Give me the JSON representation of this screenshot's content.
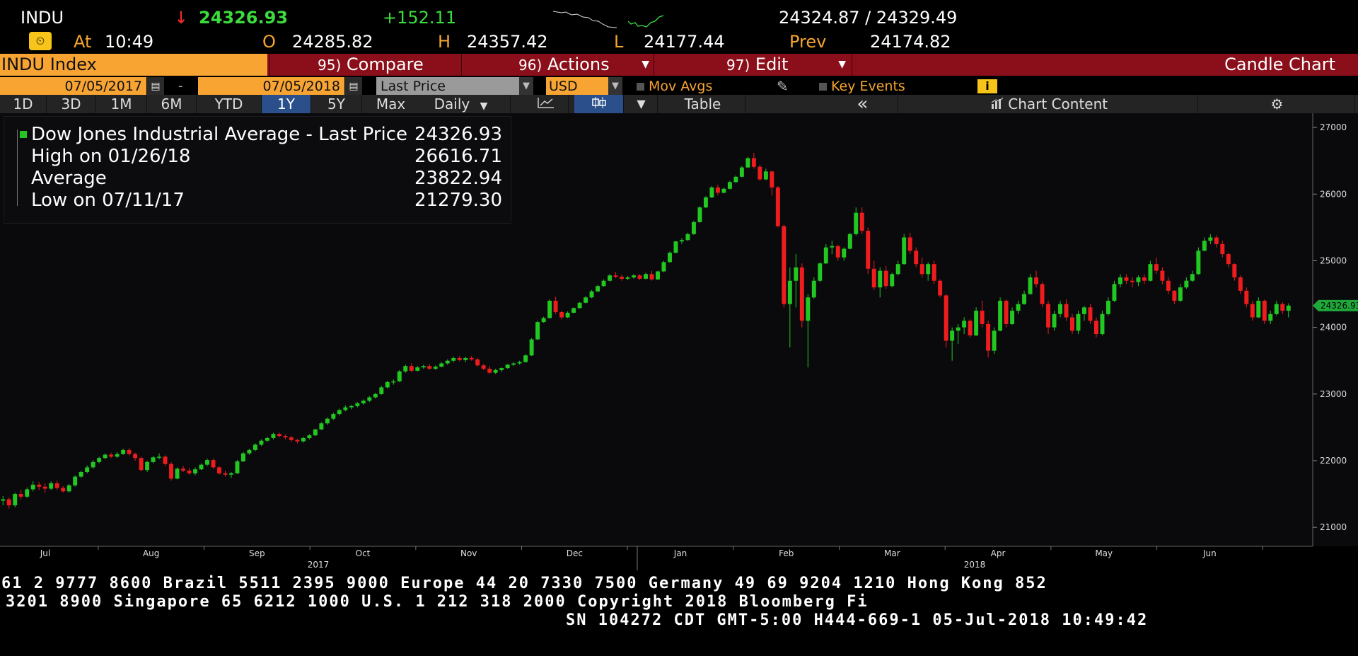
{
  "quote": {
    "ticker": "INDU",
    "arrow": "↓",
    "last": "24326.93",
    "change": "+152.11",
    "bid_ask": "24324.87 / 24329.49",
    "at_label": "At",
    "time": "10:49",
    "open_label": "O",
    "open": "24285.82",
    "high_label": "H",
    "high": "24357.42",
    "low_label": "L",
    "low": "24177.44",
    "prev_label": "Prev",
    "prev": "24174.82"
  },
  "function_bar": {
    "security": "INDU Index",
    "compare_num": "95)",
    "compare": "Compare",
    "actions_num": "96)",
    "actions": "Actions",
    "edit_num": "97)",
    "edit": "Edit",
    "chart_type": "Candle Chart"
  },
  "settings": {
    "start_date": "07/05/2017",
    "dash": "-",
    "end_date": "07/05/2018",
    "field": "Last Price",
    "currency": "USD",
    "mov_avgs": "Mov Avgs",
    "key_events": "Key Events",
    "info_icon": "i"
  },
  "range_bar": {
    "buttons": [
      "1D",
      "3D",
      "1M",
      "6M",
      "YTD",
      "1Y",
      "5Y",
      "Max"
    ],
    "selected": "1Y",
    "period": "Daily",
    "table": "Table",
    "collapse": "«",
    "chart_content": "Chart Content",
    "icons": [
      "line-chart-icon",
      "candle-chart-icon",
      "chevron-down-icon",
      "bar-chart-icon",
      "gear-icon"
    ]
  },
  "legend": {
    "title": "Dow Jones Industrial Average - Last Price",
    "title_value": "24326.93",
    "high_label": "High on 01/26/18",
    "high_value": "26616.71",
    "avg_label": "Average",
    "avg_value": "23822.94",
    "low_label": "Low on 07/11/17",
    "low_value": "21279.30"
  },
  "ticker_lines": [
    "61 2 9777 8600 Brazil 5511 2395 9000 Europe 44 20 7330 7500 Germany 49 69 9204 1210 Hong Kong 852",
    "3201 8900     Singapore 65 6212 1000       U.S. 1 212 318 2000        Copyright 2018 Bloomberg Fi",
    "SN 104272 CDT  GMT-5:00 H444-669-1 05-Jul-2018 10:49:42"
  ],
  "colors": {
    "up": "#22c722",
    "down": "#ee1c1c",
    "accent": "#f7a433",
    "function_bar": "#8b0f1a",
    "selected": "#2a4f8a"
  },
  "chart_data": {
    "type": "candlestick",
    "title": "Dow Jones Industrial Average - Last Price",
    "y_ticks": [
      21000,
      22000,
      23000,
      24000,
      25000,
      26000,
      27000
    ],
    "ylim": [
      20800,
      27150
    ],
    "month_labels": [
      "Jul",
      "Aug",
      "Sep",
      "Oct",
      "Nov",
      "Dec",
      "Jan",
      "Feb",
      "Mar",
      "Apr",
      "May",
      "Jun"
    ],
    "year_labels": [
      "2017",
      "2018"
    ],
    "last_price_tag": "24326.93",
    "grid": false,
    "ohlc": [
      [
        21400,
        21470,
        21330,
        21420
      ],
      [
        21420,
        21450,
        21280,
        21330
      ],
      [
        21330,
        21520,
        21300,
        21500
      ],
      [
        21500,
        21560,
        21420,
        21460
      ],
      [
        21460,
        21600,
        21440,
        21570
      ],
      [
        21570,
        21690,
        21540,
        21640
      ],
      [
        21640,
        21680,
        21560,
        21610
      ],
      [
        21610,
        21660,
        21520,
        21580
      ],
      [
        21580,
        21690,
        21560,
        21660
      ],
      [
        21660,
        21700,
        21560,
        21590
      ],
      [
        21590,
        21620,
        21520,
        21540
      ],
      [
        21540,
        21650,
        21520,
        21630
      ],
      [
        21630,
        21780,
        21610,
        21760
      ],
      [
        21760,
        21850,
        21740,
        21830
      ],
      [
        21830,
        21930,
        21810,
        21900
      ],
      [
        21900,
        22010,
        21880,
        21980
      ],
      [
        21980,
        22060,
        21960,
        22040
      ],
      [
        22040,
        22110,
        22020,
        22090
      ],
      [
        22090,
        22120,
        22040,
        22060
      ],
      [
        22060,
        22130,
        22040,
        22100
      ],
      [
        22100,
        22180,
        22090,
        22160
      ],
      [
        22160,
        22190,
        22080,
        22100
      ],
      [
        22100,
        22120,
        22000,
        22040
      ],
      [
        22040,
        22060,
        21840,
        21860
      ],
      [
        21860,
        22000,
        21830,
        21980
      ],
      [
        21980,
        22070,
        21960,
        22050
      ],
      [
        22050,
        22110,
        22020,
        22060
      ],
      [
        22060,
        22080,
        21920,
        21950
      ],
      [
        21950,
        21980,
        21700,
        21730
      ],
      [
        21730,
        21900,
        21720,
        21880
      ],
      [
        21880,
        21920,
        21830,
        21850
      ],
      [
        21850,
        21890,
        21790,
        21810
      ],
      [
        21810,
        21900,
        21780,
        21870
      ],
      [
        21870,
        21960,
        21860,
        21940
      ],
      [
        21940,
        22030,
        21920,
        22010
      ],
      [
        22010,
        22030,
        21880,
        21900
      ],
      [
        21900,
        21920,
        21790,
        21810
      ],
      [
        21810,
        21850,
        21760,
        21790
      ],
      [
        21790,
        21830,
        21740,
        21810
      ],
      [
        21810,
        22010,
        21800,
        21990
      ],
      [
        21990,
        22130,
        21980,
        22110
      ],
      [
        22110,
        22180,
        22090,
        22160
      ],
      [
        22160,
        22260,
        22140,
        22240
      ],
      [
        22240,
        22320,
        22220,
        22300
      ],
      [
        22300,
        22360,
        22280,
        22340
      ],
      [
        22340,
        22420,
        22320,
        22400
      ],
      [
        22400,
        22420,
        22350,
        22370
      ],
      [
        22370,
        22390,
        22320,
        22350
      ],
      [
        22350,
        22370,
        22280,
        22310
      ],
      [
        22310,
        22330,
        22260,
        22290
      ],
      [
        22290,
        22360,
        22270,
        22340
      ],
      [
        22340,
        22400,
        22320,
        22380
      ],
      [
        22380,
        22480,
        22370,
        22470
      ],
      [
        22470,
        22580,
        22460,
        22560
      ],
      [
        22560,
        22650,
        22540,
        22630
      ],
      [
        22630,
        22720,
        22610,
        22700
      ],
      [
        22700,
        22780,
        22680,
        22760
      ],
      [
        22760,
        22830,
        22740,
        22800
      ],
      [
        22800,
        22840,
        22770,
        22820
      ],
      [
        22820,
        22880,
        22800,
        22860
      ],
      [
        22860,
        22920,
        22840,
        22900
      ],
      [
        22900,
        22970,
        22880,
        22950
      ],
      [
        22950,
        23020,
        22930,
        23000
      ],
      [
        23000,
        23120,
        22990,
        23100
      ],
      [
        23100,
        23200,
        23080,
        23180
      ],
      [
        23180,
        23220,
        23140,
        23190
      ],
      [
        23190,
        23360,
        23180,
        23340
      ],
      [
        23340,
        23440,
        23320,
        23420
      ],
      [
        23420,
        23460,
        23330,
        23350
      ],
      [
        23350,
        23420,
        23340,
        23400
      ],
      [
        23400,
        23440,
        23380,
        23420
      ],
      [
        23420,
        23450,
        23360,
        23380
      ],
      [
        23380,
        23430,
        23360,
        23410
      ],
      [
        23410,
        23480,
        23400,
        23460
      ],
      [
        23460,
        23520,
        23440,
        23500
      ],
      [
        23500,
        23560,
        23480,
        23540
      ],
      [
        23540,
        23570,
        23490,
        23510
      ],
      [
        23510,
        23560,
        23480,
        23540
      ],
      [
        23540,
        23570,
        23500,
        23520
      ],
      [
        23520,
        23540,
        23410,
        23430
      ],
      [
        23430,
        23450,
        23360,
        23380
      ],
      [
        23380,
        23420,
        23300,
        23320
      ],
      [
        23320,
        23380,
        23300,
        23360
      ],
      [
        23360,
        23400,
        23330,
        23390
      ],
      [
        23390,
        23450,
        23380,
        23440
      ],
      [
        23440,
        23480,
        23420,
        23460
      ],
      [
        23460,
        23500,
        23440,
        23480
      ],
      [
        23480,
        23600,
        23470,
        23580
      ],
      [
        23580,
        23840,
        23570,
        23820
      ],
      [
        23820,
        24100,
        23810,
        24080
      ],
      [
        24080,
        24160,
        24070,
        24140
      ],
      [
        24140,
        24420,
        24130,
        24400
      ],
      [
        24400,
        24460,
        24200,
        24230
      ],
      [
        24230,
        24250,
        24120,
        24150
      ],
      [
        24150,
        24240,
        24140,
        24220
      ],
      [
        24220,
        24300,
        24210,
        24290
      ],
      [
        24290,
        24380,
        24280,
        24370
      ],
      [
        24370,
        24470,
        24360,
        24450
      ],
      [
        24450,
        24560,
        24440,
        24540
      ],
      [
        24540,
        24640,
        24530,
        24620
      ],
      [
        24620,
        24720,
        24610,
        24700
      ],
      [
        24700,
        24800,
        24690,
        24780
      ],
      [
        24780,
        24830,
        24740,
        24760
      ],
      [
        24760,
        24790,
        24700,
        24730
      ],
      [
        24730,
        24770,
        24710,
        24750
      ],
      [
        24750,
        24800,
        24730,
        24780
      ],
      [
        24780,
        24800,
        24710,
        24730
      ],
      [
        24730,
        24820,
        24720,
        24800
      ],
      [
        24800,
        24850,
        24700,
        24720
      ],
      [
        24720,
        24850,
        24710,
        24840
      ],
      [
        24840,
        25000,
        24830,
        24980
      ],
      [
        24980,
        25140,
        24970,
        25120
      ],
      [
        25120,
        25300,
        25110,
        25290
      ],
      [
        25290,
        25340,
        25250,
        25310
      ],
      [
        25310,
        25420,
        25300,
        25400
      ],
      [
        25400,
        25600,
        25390,
        25580
      ],
      [
        25580,
        25820,
        25570,
        25800
      ],
      [
        25800,
        25970,
        25790,
        25950
      ],
      [
        25950,
        26120,
        25940,
        26100
      ],
      [
        26100,
        26140,
        25980,
        26020
      ],
      [
        26020,
        26100,
        26010,
        26080
      ],
      [
        26080,
        26200,
        26070,
        26180
      ],
      [
        26180,
        26280,
        26170,
        26260
      ],
      [
        26260,
        26420,
        26250,
        26400
      ],
      [
        26400,
        26560,
        26390,
        26540
      ],
      [
        26540,
        26620,
        26380,
        26410
      ],
      [
        26410,
        26440,
        26200,
        26220
      ],
      [
        26220,
        26380,
        26210,
        26340
      ],
      [
        26340,
        26350,
        25980,
        26100
      ],
      [
        26100,
        26120,
        25500,
        25520
      ],
      [
        25520,
        25540,
        24300,
        24350
      ],
      [
        24350,
        24900,
        23700,
        24700
      ],
      [
        24700,
        25100,
        24300,
        24900
      ],
      [
        24900,
        24960,
        24000,
        24100
      ],
      [
        24100,
        24500,
        23400,
        24450
      ],
      [
        24450,
        24750,
        24430,
        24700
      ],
      [
        24700,
        24980,
        24680,
        24960
      ],
      [
        24960,
        25250,
        24950,
        25200
      ],
      [
        25200,
        25300,
        25100,
        25220
      ],
      [
        25220,
        25240,
        25000,
        25050
      ],
      [
        25050,
        25200,
        25000,
        25180
      ],
      [
        25180,
        25420,
        25170,
        25400
      ],
      [
        25400,
        25800,
        25380,
        25720
      ],
      [
        25720,
        25800,
        25400,
        25450
      ],
      [
        25450,
        25500,
        24800,
        24880
      ],
      [
        24880,
        25000,
        24560,
        24600
      ],
      [
        24600,
        24900,
        24450,
        24850
      ],
      [
        24850,
        24920,
        24580,
        24620
      ],
      [
        24620,
        24820,
        24600,
        24800
      ],
      [
        24800,
        25000,
        24780,
        24950
      ],
      [
        24950,
        25400,
        24940,
        25350
      ],
      [
        25350,
        25420,
        25100,
        25150
      ],
      [
        25150,
        25200,
        24900,
        24950
      ],
      [
        24950,
        25050,
        24750,
        24800
      ],
      [
        24800,
        24980,
        24700,
        24950
      ],
      [
        24950,
        25000,
        24650,
        24700
      ],
      [
        24700,
        24720,
        24450,
        24480
      ],
      [
        24480,
        24500,
        23700,
        23800
      ],
      [
        23800,
        24000,
        23500,
        23950
      ],
      [
        23950,
        24050,
        23750,
        24000
      ],
      [
        24000,
        24150,
        23900,
        24100
      ],
      [
        24100,
        24120,
        23850,
        23880
      ],
      [
        23880,
        24300,
        23870,
        24250
      ],
      [
        24250,
        24400,
        24000,
        24050
      ],
      [
        24050,
        24100,
        23550,
        23650
      ],
      [
        23650,
        24000,
        23600,
        23950
      ],
      [
        23950,
        24450,
        23940,
        24400
      ],
      [
        24400,
        24420,
        24000,
        24050
      ],
      [
        24050,
        24300,
        24040,
        24250
      ],
      [
        24250,
        24400,
        24200,
        24350
      ],
      [
        24350,
        24550,
        24340,
        24500
      ],
      [
        24500,
        24800,
        24490,
        24750
      ],
      [
        24750,
        24850,
        24600,
        24650
      ],
      [
        24650,
        24680,
        24300,
        24350
      ],
      [
        24350,
        24400,
        23900,
        24000
      ],
      [
        24000,
        24250,
        23950,
        24200
      ],
      [
        24200,
        24400,
        24150,
        24350
      ],
      [
        24350,
        24420,
        24100,
        24150
      ],
      [
        24150,
        24200,
        23900,
        23950
      ],
      [
        23950,
        24250,
        23900,
        24200
      ],
      [
        24200,
        24320,
        24100,
        24300
      ],
      [
        24300,
        24350,
        24050,
        24100
      ],
      [
        24100,
        24150,
        23850,
        23900
      ],
      [
        23900,
        24250,
        23880,
        24200
      ],
      [
        24200,
        24450,
        24180,
        24400
      ],
      [
        24400,
        24700,
        24380,
        24650
      ],
      [
        24650,
        24800,
        24600,
        24750
      ],
      [
        24750,
        24800,
        24650,
        24700
      ],
      [
        24700,
        24750,
        24600,
        24680
      ],
      [
        24680,
        24780,
        24620,
        24750
      ],
      [
        24750,
        24800,
        24650,
        24700
      ],
      [
        24700,
        25000,
        24690,
        24950
      ],
      [
        24950,
        25050,
        24800,
        24850
      ],
      [
        24850,
        24900,
        24650,
        24700
      ],
      [
        24700,
        24750,
        24500,
        24550
      ],
      [
        24550,
        24560,
        24350,
        24400
      ],
      [
        24400,
        24650,
        24380,
        24600
      ],
      [
        24600,
        24750,
        24580,
        24700
      ],
      [
        24700,
        24850,
        24680,
        24800
      ],
      [
        24800,
        25200,
        24790,
        25150
      ],
      [
        25150,
        25350,
        25140,
        25300
      ],
      [
        25300,
        25400,
        25250,
        25350
      ],
      [
        25350,
        25380,
        25200,
        25250
      ],
      [
        25250,
        25300,
        25050,
        25100
      ],
      [
        25100,
        25120,
        24900,
        24950
      ],
      [
        24950,
        24960,
        24700,
        24750
      ],
      [
        24750,
        24780,
        24500,
        24550
      ],
      [
        24550,
        24600,
        24300,
        24350
      ],
      [
        24350,
        24400,
        24100,
        24150
      ],
      [
        24150,
        24450,
        24140,
        24400
      ],
      [
        24400,
        24420,
        24050,
        24100
      ],
      [
        24100,
        24250,
        24050,
        24200
      ],
      [
        24200,
        24400,
        24180,
        24350
      ],
      [
        24350,
        24380,
        24200,
        24250
      ],
      [
        24250,
        24360,
        24150,
        24327
      ]
    ]
  }
}
